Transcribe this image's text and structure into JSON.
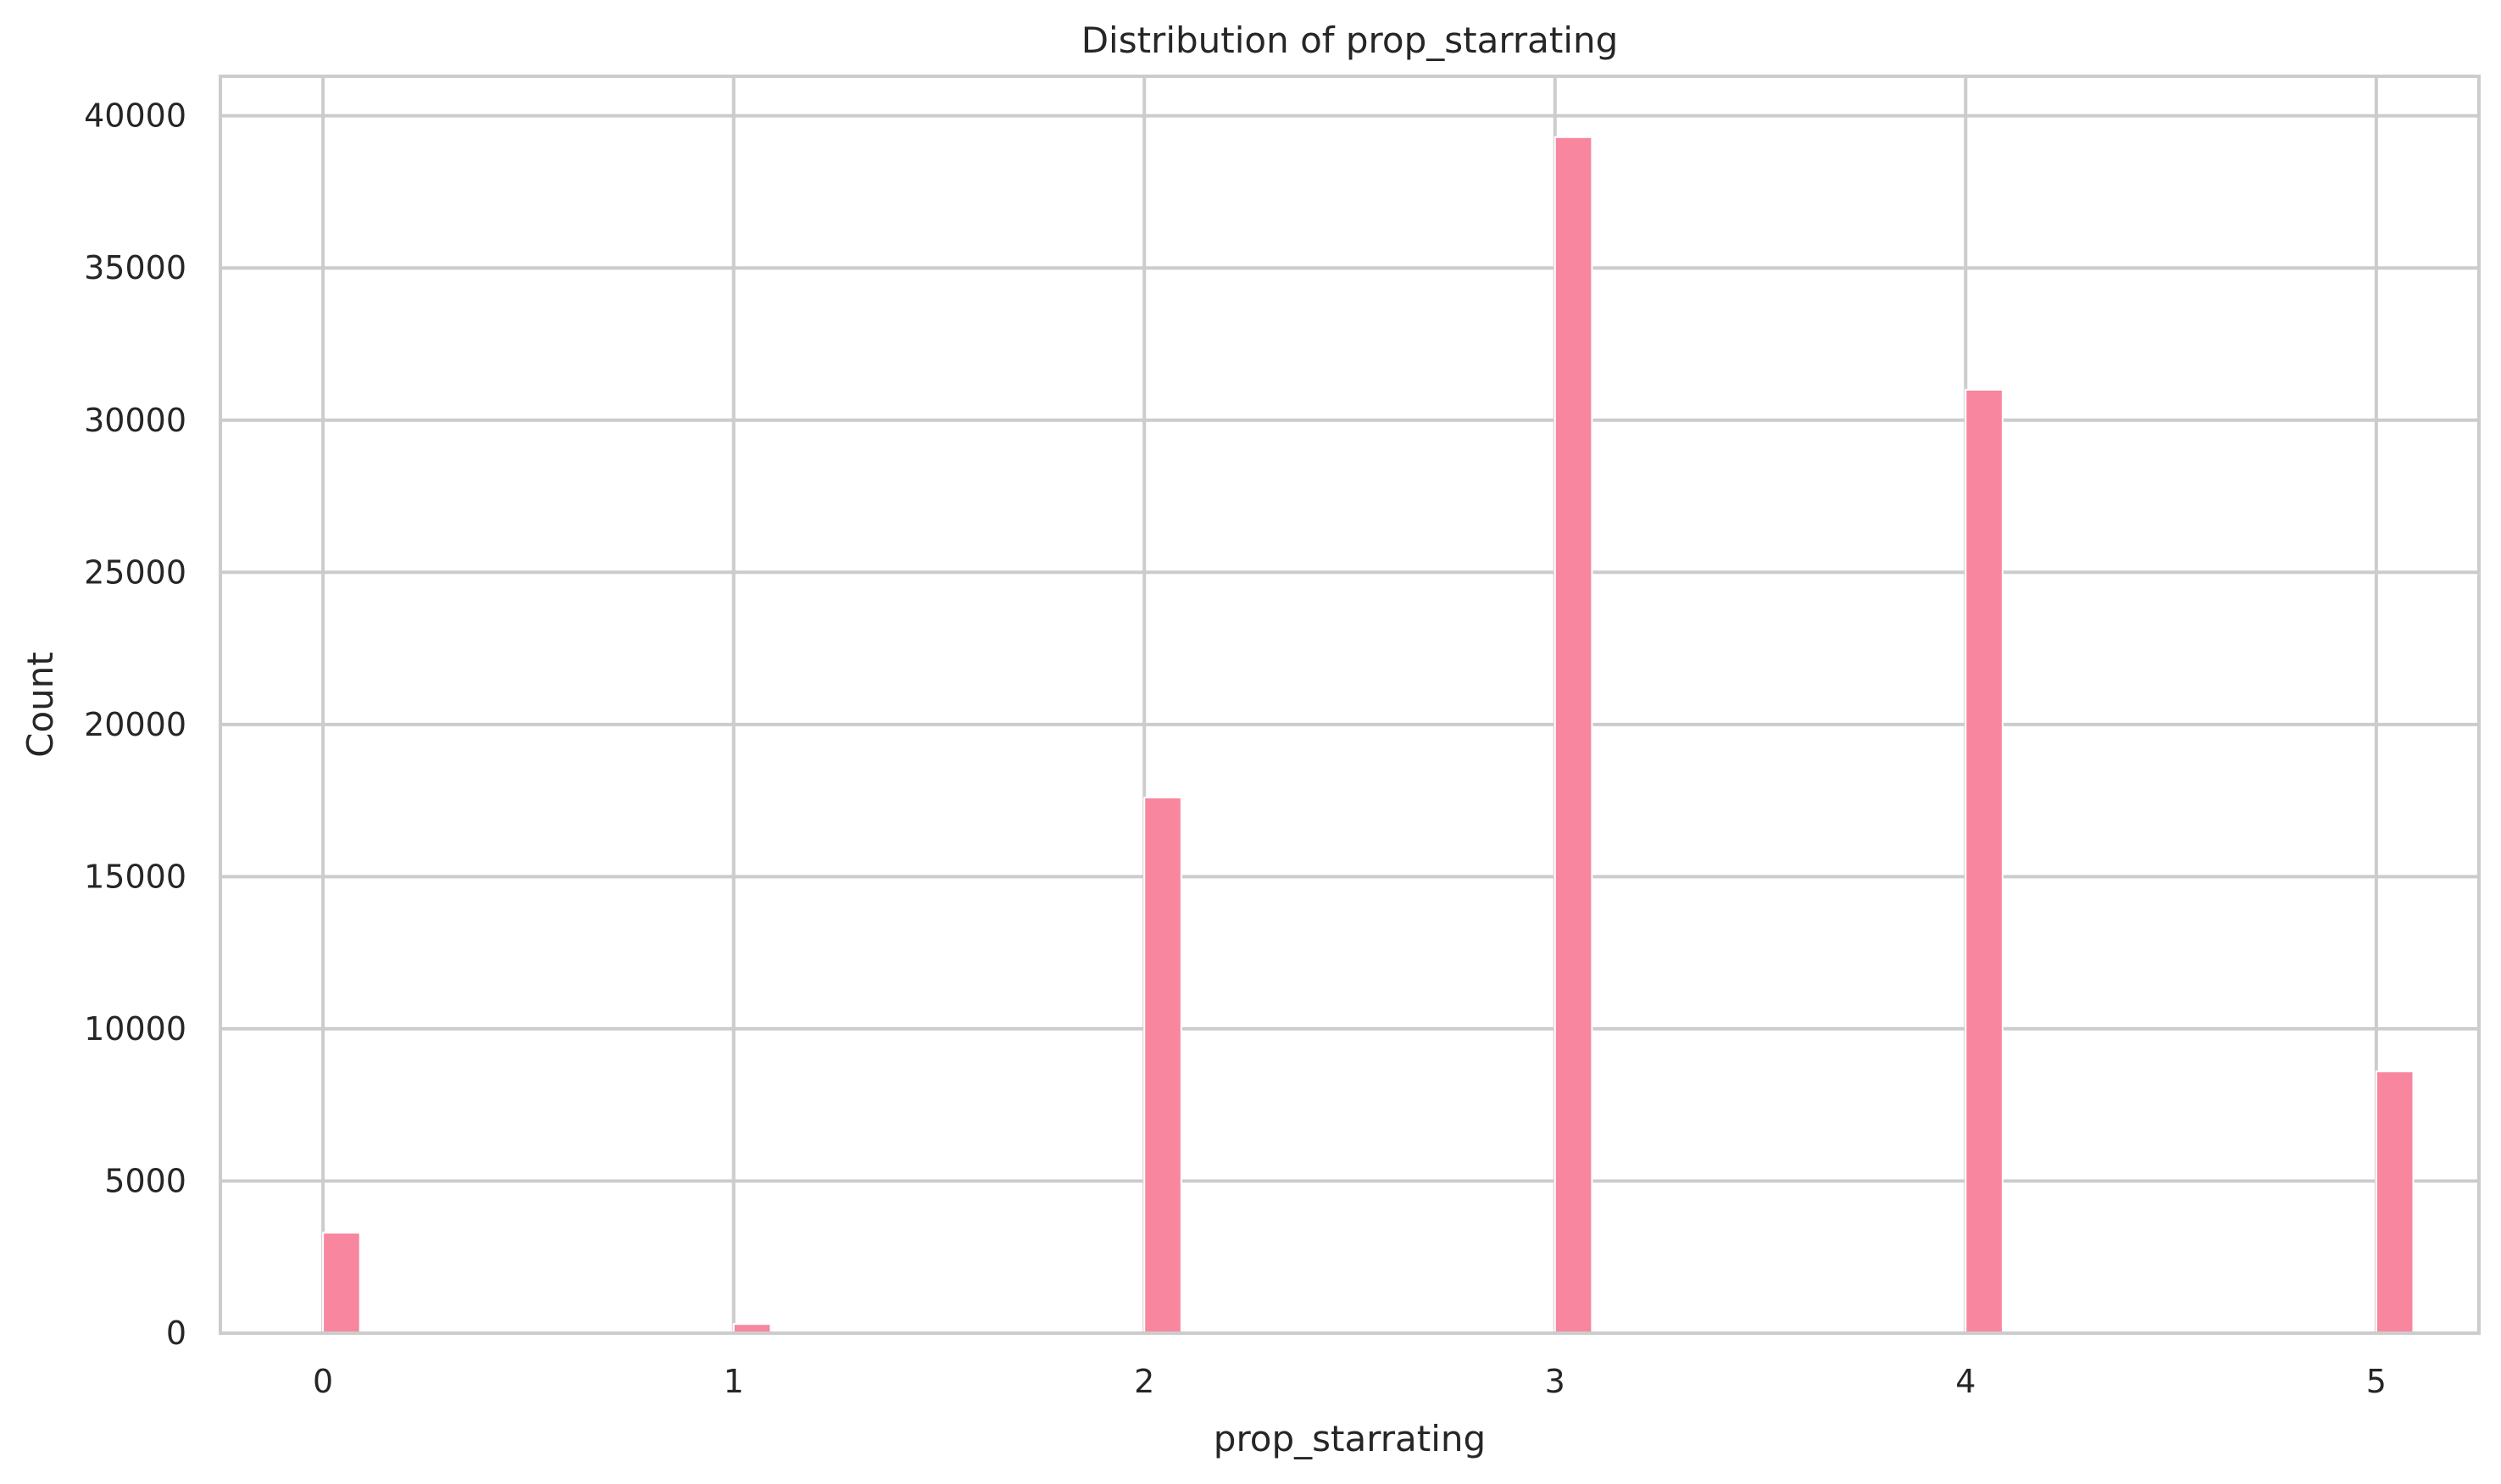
{
  "chart_data": {
    "type": "bar",
    "title": "Distribution of prop_starrating",
    "xlabel": "prop_starrating",
    "ylabel": "Count",
    "x": [
      0,
      1,
      2,
      3,
      4,
      5
    ],
    "values": [
      3300,
      300,
      17600,
      39300,
      31000,
      8600
    ],
    "xlim": [
      -0.25,
      5.25
    ],
    "ylim": [
      0,
      41300
    ],
    "xticks": [
      0,
      1,
      2,
      3,
      4,
      5
    ],
    "xtick_labels": [
      "0",
      "1",
      "2",
      "3",
      "4",
      "5"
    ],
    "yticks": [
      0,
      5000,
      10000,
      15000,
      20000,
      25000,
      30000,
      35000,
      40000
    ],
    "ytick_labels": [
      "0",
      "5000",
      "10000",
      "15000",
      "20000",
      "25000",
      "30000",
      "35000",
      "40000"
    ],
    "bar_width": 0.09,
    "grid": true,
    "legend": "none",
    "colors": {
      "bar": "#f7869e",
      "grid": "#cccccc",
      "spine": "#cccccc",
      "text": "#262626",
      "background": "#ffffff"
    }
  }
}
